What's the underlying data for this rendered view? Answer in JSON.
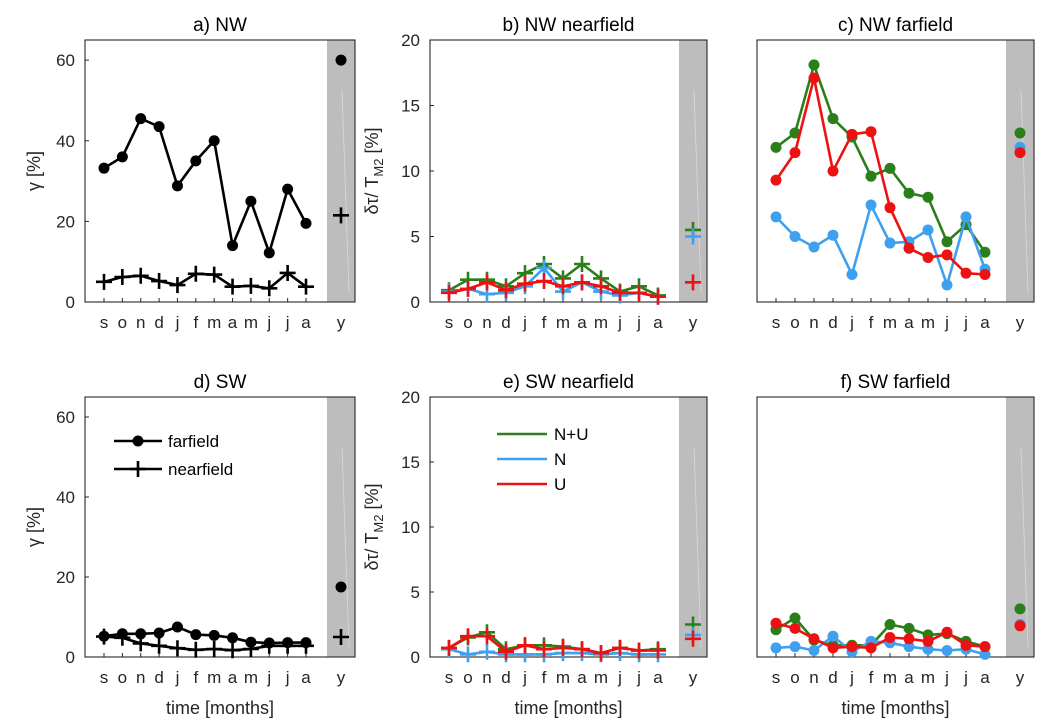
{
  "colors": {
    "NpU": "#2b7f1a",
    "N": "#3fa0f0",
    "U": "#ee1111",
    "gamma": "#000000",
    "shade": "#bdbdbd"
  },
  "chart_data": [
    {
      "id": "a",
      "type": "line",
      "title": "a) NW",
      "xlabel": "",
      "ylabel": "γ [%]",
      "ylim": [
        0,
        65
      ],
      "yticks": [
        "0",
        "20",
        "40",
        "60"
      ],
      "categories": [
        "s",
        "o",
        "n",
        "d",
        "j",
        "f",
        "m",
        "a",
        "m",
        "j",
        "j",
        "a"
      ],
      "annual_label": "y",
      "series": [
        {
          "key": "farfield",
          "color": "gamma",
          "marker": "dot",
          "values": [
            33.2,
            36,
            45.5,
            43.5,
            28.8,
            35,
            40,
            14,
            25,
            12.2,
            28,
            19.5
          ],
          "annual": 60
        },
        {
          "key": "nearfield",
          "color": "gamma",
          "marker": "plus",
          "values": [
            5,
            6.2,
            6.5,
            5.2,
            4.2,
            7,
            6.8,
            3.8,
            4,
            3.4,
            7.2,
            3.8
          ],
          "annual": 21.5
        }
      ]
    },
    {
      "id": "b",
      "type": "line",
      "title": "b) NW nearfield",
      "xlabel": "",
      "ylabel": "δτ/ T",
      "ylabel_sub": "M2",
      "ylabel_unit": "[%]",
      "ylim": [
        0,
        20
      ],
      "yticks": [
        "0",
        "5",
        "10",
        "15",
        "20"
      ],
      "categories": [
        "s",
        "o",
        "n",
        "d",
        "j",
        "f",
        "m",
        "a",
        "m",
        "j",
        "j",
        "a"
      ],
      "annual_label": "y",
      "series": [
        {
          "key": "N+U",
          "color": "NpU",
          "marker": "plus",
          "values": [
            0.9,
            1.7,
            1.7,
            1.2,
            2.2,
            2.9,
            1.8,
            2.9,
            1.8,
            0.8,
            1.2,
            0.5
          ],
          "annual": 5.5
        },
        {
          "key": "N",
          "color": "N",
          "marker": "plus",
          "values": [
            0.8,
            1.0,
            0.6,
            0.7,
            1.2,
            2.6,
            0.8,
            1.5,
            0.8,
            0.5,
            0.7,
            0.4
          ],
          "annual": 5.0
        },
        {
          "key": "U",
          "color": "U",
          "marker": "plus",
          "values": [
            0.7,
            1.0,
            1.5,
            0.9,
            1.4,
            1.6,
            1.2,
            1.5,
            1.2,
            0.7,
            0.7,
            0.4
          ],
          "annual": 1.5
        }
      ]
    },
    {
      "id": "c",
      "type": "line",
      "title": "c) NW farfield",
      "xlabel": "",
      "ylabel": "",
      "ylim": [
        0,
        20
      ],
      "yticks": [],
      "categories": [
        "s",
        "o",
        "n",
        "d",
        "j",
        "f",
        "m",
        "a",
        "m",
        "j",
        "j",
        "a"
      ],
      "annual_label": "y",
      "series": [
        {
          "key": "N+U",
          "color": "NpU",
          "marker": "dot",
          "values": [
            11.8,
            12.9,
            18.1,
            14.0,
            12.6,
            9.6,
            10.2,
            8.3,
            8.0,
            4.6,
            5.9,
            3.8
          ],
          "annual": 12.9
        },
        {
          "key": "N",
          "color": "N",
          "marker": "dot",
          "values": [
            6.5,
            5.0,
            4.2,
            5.1,
            2.1,
            7.4,
            4.5,
            4.6,
            5.5,
            1.3,
            6.5,
            2.5
          ],
          "annual": 11.8
        },
        {
          "key": "U",
          "color": "U",
          "marker": "dot",
          "values": [
            9.3,
            11.4,
            17.1,
            10.0,
            12.8,
            13.0,
            7.2,
            4.1,
            3.4,
            3.6,
            2.2,
            2.1
          ],
          "annual": 11.4
        }
      ]
    },
    {
      "id": "d",
      "type": "line",
      "title": "d) SW",
      "xlabel": "time [months]",
      "ylabel": "γ [%]",
      "ylim": [
        0,
        65
      ],
      "yticks": [
        "0",
        "20",
        "40",
        "60"
      ],
      "categories": [
        "s",
        "o",
        "n",
        "d",
        "j",
        "f",
        "m",
        "a",
        "m",
        "j",
        "j",
        "a"
      ],
      "annual_label": "y",
      "legend": {
        "placement": "top-left",
        "entries": [
          {
            "label": "farfield",
            "marker": "dot"
          },
          {
            "label": "nearfield",
            "marker": "plus"
          }
        ]
      },
      "series": [
        {
          "key": "farfield",
          "color": "gamma",
          "marker": "dot",
          "values": [
            5.2,
            5.8,
            5.8,
            6.0,
            7.5,
            5.6,
            5.4,
            4.8,
            3.7,
            3.5,
            3.6,
            3.6
          ],
          "annual": 17.5
        },
        {
          "key": "nearfield",
          "color": "gamma",
          "marker": "plus",
          "values": [
            5.1,
            4.8,
            3.4,
            2.8,
            2.2,
            1.8,
            2.0,
            1.7,
            2.0,
            2.8,
            2.8,
            2.8
          ],
          "annual": 5
        }
      ]
    },
    {
      "id": "e",
      "type": "line",
      "title": "e) SW nearfield",
      "xlabel": "time [months]",
      "ylabel": "δτ/ T",
      "ylabel_sub": "M2",
      "ylabel_unit": "[%]",
      "ylim": [
        0,
        20
      ],
      "yticks": [
        "0",
        "5",
        "10",
        "15",
        "20"
      ],
      "categories": [
        "s",
        "o",
        "n",
        "d",
        "j",
        "f",
        "m",
        "a",
        "m",
        "j",
        "j",
        "a"
      ],
      "annual_label": "y",
      "legend": {
        "placement": "top-left",
        "entries": [
          {
            "label": "N+U",
            "color": "NpU"
          },
          {
            "label": "N",
            "color": "N"
          },
          {
            "label": "U",
            "color": "U"
          }
        ]
      },
      "series": [
        {
          "key": "N+U",
          "color": "NpU",
          "marker": "plus",
          "values": [
            0.7,
            1.5,
            1.9,
            0.6,
            0.9,
            0.9,
            0.8,
            0.6,
            0.3,
            0.7,
            0.5,
            0.6
          ],
          "annual": 2.5
        },
        {
          "key": "N",
          "color": "N",
          "marker": "plus",
          "values": [
            0.6,
            0.2,
            0.4,
            0.2,
            0.2,
            0.2,
            0.3,
            0.3,
            0.2,
            0.3,
            0.2,
            0.2
          ],
          "annual": 1.7
        },
        {
          "key": "U",
          "color": "U",
          "marker": "plus",
          "values": [
            0.7,
            1.6,
            1.6,
            0.4,
            0.9,
            0.6,
            0.7,
            0.6,
            0.3,
            0.7,
            0.5,
            0.5
          ],
          "annual": 1.4
        }
      ]
    },
    {
      "id": "f",
      "type": "line",
      "title": "f) SW farfield",
      "xlabel": "time [months]",
      "ylabel": "",
      "ylim": [
        0,
        20
      ],
      "yticks": [],
      "categories": [
        "s",
        "o",
        "n",
        "d",
        "j",
        "f",
        "m",
        "a",
        "m",
        "j",
        "j",
        "a"
      ],
      "annual_label": "y",
      "series": [
        {
          "key": "N+U",
          "color": "NpU",
          "marker": "dot",
          "values": [
            2.1,
            3.0,
            1.3,
            0.9,
            0.9,
            0.9,
            2.5,
            2.2,
            1.7,
            1.8,
            1.2,
            0.8
          ],
          "annual": 3.7
        },
        {
          "key": "N",
          "color": "N",
          "marker": "dot",
          "values": [
            0.7,
            0.8,
            0.5,
            1.6,
            0.4,
            1.2,
            1.1,
            0.8,
            0.6,
            0.5,
            0.6,
            0.2
          ],
          "annual": 2.5
        },
        {
          "key": "U",
          "color": "U",
          "marker": "dot",
          "values": [
            2.6,
            2.2,
            1.4,
            0.7,
            0.8,
            0.7,
            1.5,
            1.4,
            1.2,
            1.9,
            0.9,
            0.8
          ],
          "annual": 2.4
        }
      ]
    }
  ]
}
